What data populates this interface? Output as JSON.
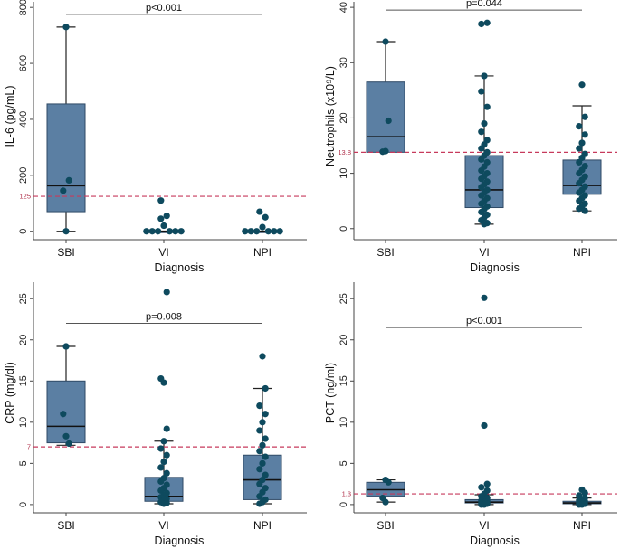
{
  "colors": {
    "box_fill": "#5b7fa3",
    "box_stroke": "#2f4a66",
    "point": "#0e4a5e",
    "ref_line": "#c73a5c",
    "sig_line": "#555555",
    "axis": "#444444"
  },
  "chart_data": [
    {
      "type": "box",
      "id": "il6",
      "ylabel": "IL-6 (pg/mL)",
      "xlabel": "Diagnosis",
      "categories": [
        "SBI",
        "VI",
        "NPI"
      ],
      "ylim": [
        -30,
        820
      ],
      "yticks": [
        0,
        200,
        400,
        600,
        800
      ],
      "reference": {
        "value": 125,
        "label": "125"
      },
      "significance": {
        "label": "p<0.001",
        "y": 775
      },
      "boxes": [
        {
          "q1": 70,
          "median": 163,
          "q3": 455,
          "low": 0,
          "high": 730
        },
        {
          "q1": 0,
          "median": 0,
          "q3": 0,
          "low": 0,
          "high": 0
        },
        {
          "q1": 0,
          "median": 0,
          "q3": 0,
          "low": 0,
          "high": 0
        }
      ],
      "points": [
        [
          0,
          730
        ],
        [
          1,
          182
        ],
        [
          -1,
          145
        ],
        [
          0,
          0
        ],
        [
          -1,
          110
        ],
        [
          1,
          55
        ],
        [
          -1,
          45
        ],
        [
          0,
          20
        ],
        [
          -6,
          0
        ],
        [
          -4,
          0
        ],
        [
          -2,
          0
        ],
        [
          2,
          0
        ],
        [
          4,
          0
        ],
        [
          6,
          0
        ],
        [
          -1,
          70
        ],
        [
          1,
          50
        ],
        [
          0,
          15
        ],
        [
          -6,
          0
        ],
        [
          -4,
          0
        ],
        [
          -2,
          0
        ],
        [
          2,
          0
        ],
        [
          4,
          0
        ],
        [
          6,
          0
        ]
      ],
      "point_groups": [
        4,
        10,
        9
      ]
    },
    {
      "type": "box",
      "id": "neutrophils",
      "ylabel": "Neutrophils (x10⁹/L)",
      "xlabel": "Diagnosis",
      "categories": [
        "SBI",
        "VI",
        "NPI"
      ],
      "ylim": [
        -2,
        41
      ],
      "yticks": [
        0,
        10,
        20,
        30,
        40
      ],
      "reference": {
        "value": 13.8,
        "label": "13.8"
      },
      "significance": {
        "label": "p=0.044",
        "y": 39.5
      },
      "boxes": [
        {
          "q1": 13.8,
          "median": 16.6,
          "q3": 26.5,
          "low": 13.8,
          "high": 33.8
        },
        {
          "q1": 3.8,
          "median": 7.0,
          "q3": 13.2,
          "low": 0.8,
          "high": 27.6
        },
        {
          "q1": 6.2,
          "median": 7.8,
          "q3": 12.4,
          "low": 3.2,
          "high": 22.2
        }
      ],
      "points": [
        [
          0,
          33.8
        ],
        [
          1,
          19.5
        ],
        [
          0,
          14.0
        ],
        [
          -1,
          13.9
        ],
        [
          1,
          37.2
        ],
        [
          -1,
          37.0
        ],
        [
          0,
          27.6
        ],
        [
          -1,
          24.8
        ],
        [
          1,
          22.0
        ],
        [
          0,
          19.0
        ],
        [
          -1,
          17.5
        ],
        [
          1,
          16.0
        ],
        [
          0,
          15.2
        ],
        [
          -1,
          14.5
        ],
        [
          1,
          13.8
        ],
        [
          0,
          13.2
        ],
        [
          -1,
          12.5
        ],
        [
          1,
          12.0
        ],
        [
          0,
          11.2
        ],
        [
          -1,
          10.5
        ],
        [
          1,
          10.0
        ],
        [
          0,
          9.5
        ],
        [
          -1,
          9.0
        ],
        [
          1,
          8.5
        ],
        [
          0,
          8.0
        ],
        [
          -1,
          7.5
        ],
        [
          1,
          7.0
        ],
        [
          0,
          6.5
        ],
        [
          -1,
          6.0
        ],
        [
          1,
          5.5
        ],
        [
          0,
          5.0
        ],
        [
          -1,
          4.5
        ],
        [
          1,
          4.0
        ],
        [
          0,
          3.5
        ],
        [
          -1,
          3.0
        ],
        [
          1,
          2.5
        ],
        [
          0,
          2.0
        ],
        [
          -1,
          1.5
        ],
        [
          1,
          1.0
        ],
        [
          0,
          0.8
        ],
        [
          0,
          26.0
        ],
        [
          1,
          20.2
        ],
        [
          -1,
          18.5
        ],
        [
          1,
          17.0
        ],
        [
          0,
          15.5
        ],
        [
          -1,
          14.5
        ],
        [
          1,
          13.5
        ],
        [
          0,
          12.8
        ],
        [
          -1,
          12.0
        ],
        [
          1,
          11.3
        ],
        [
          0,
          10.6
        ],
        [
          -1,
          10.0
        ],
        [
          1,
          9.4
        ],
        [
          0,
          8.8
        ],
        [
          -1,
          8.2
        ],
        [
          1,
          7.6
        ],
        [
          0,
          7.0
        ],
        [
          -1,
          6.5
        ],
        [
          1,
          6.0
        ],
        [
          0,
          5.5
        ],
        [
          -1,
          5.0
        ],
        [
          1,
          4.5
        ],
        [
          0,
          4.0
        ],
        [
          -1,
          3.6
        ],
        [
          1,
          3.2
        ]
      ],
      "point_groups": [
        4,
        36,
        25
      ]
    },
    {
      "type": "box",
      "id": "crp",
      "ylabel": "CRP (mg/dl)",
      "xlabel": "Diagnosis",
      "categories": [
        "SBI",
        "VI",
        "NPI"
      ],
      "ylim": [
        -1,
        27
      ],
      "yticks": [
        0,
        5,
        10,
        15,
        20,
        25
      ],
      "reference": {
        "value": 7,
        "label": "7"
      },
      "significance": {
        "label": "p=0.008",
        "y": 22.0
      },
      "boxes": [
        {
          "q1": 7.5,
          "median": 9.5,
          "q3": 15.0,
          "low": 7.2,
          "high": 19.2
        },
        {
          "q1": 0.4,
          "median": 1.0,
          "q3": 3.3,
          "low": 0.1,
          "high": 7.7
        },
        {
          "q1": 0.6,
          "median": 3.0,
          "q3": 6.0,
          "low": 0.1,
          "high": 14.1
        }
      ],
      "points": [
        [
          0,
          19.2
        ],
        [
          -1,
          11.0
        ],
        [
          0,
          8.3
        ],
        [
          1,
          7.4
        ],
        [
          1,
          25.8
        ],
        [
          -1,
          15.3
        ],
        [
          0,
          14.8
        ],
        [
          1,
          9.2
        ],
        [
          0,
          7.7
        ],
        [
          -1,
          6.8
        ],
        [
          1,
          6.0
        ],
        [
          0,
          5.2
        ],
        [
          -1,
          4.5
        ],
        [
          1,
          3.8
        ],
        [
          0,
          3.2
        ],
        [
          -1,
          2.8
        ],
        [
          1,
          2.4
        ],
        [
          0,
          2.0
        ],
        [
          -1,
          1.7
        ],
        [
          1,
          1.4
        ],
        [
          0,
          1.1
        ],
        [
          -1,
          0.9
        ],
        [
          1,
          0.7
        ],
        [
          0,
          0.5
        ],
        [
          -1,
          0.3
        ],
        [
          1,
          0.2
        ],
        [
          0,
          0.1
        ],
        [
          0,
          18.0
        ],
        [
          1,
          14.1
        ],
        [
          -1,
          12.0
        ],
        [
          1,
          11.0
        ],
        [
          0,
          10.0
        ],
        [
          -1,
          9.0
        ],
        [
          1,
          8.0
        ],
        [
          0,
          7.2
        ],
        [
          -1,
          6.5
        ],
        [
          1,
          5.8
        ],
        [
          0,
          5.0
        ],
        [
          -1,
          4.3
        ],
        [
          1,
          3.6
        ],
        [
          0,
          3.0
        ],
        [
          -1,
          2.5
        ],
        [
          1,
          2.0
        ],
        [
          0,
          1.5
        ],
        [
          -1,
          1.0
        ],
        [
          1,
          0.6
        ],
        [
          0,
          0.3
        ],
        [
          -1,
          0.1
        ]
      ],
      "point_groups": [
        4,
        23,
        21
      ]
    },
    {
      "type": "box",
      "id": "pct",
      "ylabel": "PCT (ng/ml)",
      "xlabel": "Diagnosis",
      "categories": [
        "SBI",
        "VI",
        "NPI"
      ],
      "ylim": [
        -1,
        27
      ],
      "yticks": [
        0,
        5,
        10,
        15,
        20,
        25
      ],
      "reference": {
        "value": 1.3,
        "label": "1.3"
      },
      "significance": {
        "label": "p<0.001",
        "y": 21.5
      },
      "boxes": [
        {
          "q1": 1.0,
          "median": 1.8,
          "q3": 2.7,
          "low": 0.3,
          "high": 3.0
        },
        {
          "q1": 0.2,
          "median": 0.3,
          "q3": 0.6,
          "low": 0.0,
          "high": 1.2
        },
        {
          "q1": 0.1,
          "median": 0.2,
          "q3": 0.4,
          "low": 0.0,
          "high": 0.8
        }
      ],
      "points": [
        [
          0,
          3.0
        ],
        [
          1,
          2.7
        ],
        [
          -1,
          0.8
        ],
        [
          0,
          0.3
        ],
        [
          0,
          25.1
        ],
        [
          0,
          9.6
        ],
        [
          1,
          2.5
        ],
        [
          -1,
          2.1
        ],
        [
          1,
          1.7
        ],
        [
          0,
          1.3
        ],
        [
          -1,
          1.0
        ],
        [
          1,
          0.8
        ],
        [
          0,
          0.6
        ],
        [
          -1,
          0.5
        ],
        [
          1,
          0.4
        ],
        [
          0,
          0.3
        ],
        [
          -1,
          0.2
        ],
        [
          1,
          0.1
        ],
        [
          0,
          0.0
        ],
        [
          -1,
          0.0
        ],
        [
          0,
          1.8
        ],
        [
          1,
          1.4
        ],
        [
          -1,
          1.1
        ],
        [
          1,
          0.8
        ],
        [
          0,
          0.6
        ],
        [
          -1,
          0.5
        ],
        [
          1,
          0.4
        ],
        [
          0,
          0.3
        ],
        [
          -1,
          0.2
        ],
        [
          1,
          0.1
        ],
        [
          0,
          0.0
        ],
        [
          -1,
          0.0
        ]
      ],
      "point_groups": [
        4,
        16,
        12
      ]
    }
  ]
}
